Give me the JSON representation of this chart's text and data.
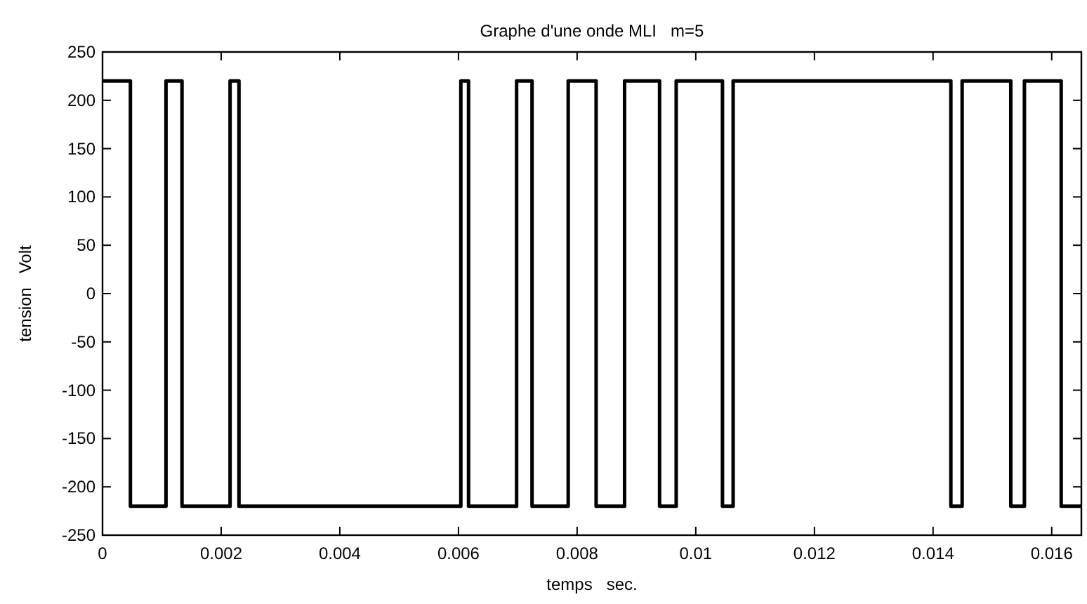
{
  "chart_data": {
    "type": "step",
    "title": "Graphe d'une onde MLI   m=5",
    "xlabel": "temps   sec.",
    "ylabel": "tension   Volt",
    "x": [
      0,
      0.00047,
      0.00107,
      0.00134,
      0.00215,
      0.0023,
      0.00604,
      0.00617,
      0.00698,
      0.00724,
      0.00785,
      0.00832,
      0.0088,
      0.00939,
      0.00967,
      0.01045,
      0.01063,
      0.0143,
      0.01449,
      0.01531,
      0.01554,
      0.01616,
      0.0165
    ],
    "series": [
      {
        "color": "#000000",
        "values": [
          220,
          -220,
          220,
          -220,
          220,
          -220,
          220,
          -220,
          220,
          -220,
          220,
          -220,
          220,
          -220,
          220,
          -220,
          220,
          -220,
          220,
          -220,
          220,
          -220,
          -220
        ]
      }
    ],
    "xlim": [
      0,
      0.0165
    ],
    "xticks": [
      0,
      0.002,
      0.004,
      0.006,
      0.008,
      0.01,
      0.012,
      0.014,
      0.016
    ],
    "ylim": [
      -250,
      250
    ],
    "yticks": [
      -250,
      -200,
      -150,
      -100,
      -50,
      0,
      50,
      100,
      150,
      200,
      250
    ],
    "grid": false
  }
}
